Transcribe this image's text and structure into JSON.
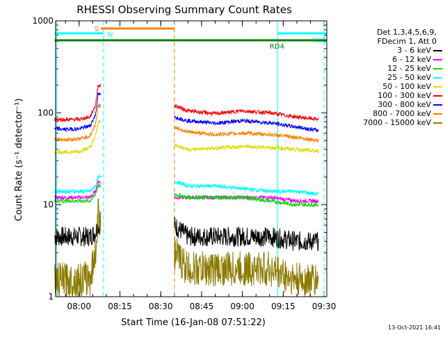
{
  "chart_data": {
    "type": "line",
    "title": "RHESSI Observing Summary Count Rates",
    "xlabel": "Start Time (16-Jan-08 07:51:22)",
    "ylabel": "Count Rate (s⁻¹ detector⁻¹)",
    "x_scale": "time",
    "y_scale": "log",
    "xlim": [
      "07:51:22",
      "09:31:00"
    ],
    "ylim": [
      1,
      1000
    ],
    "x_ticks": [
      "08:00",
      "08:15",
      "08:30",
      "08:45",
      "09:00",
      "09:15",
      "09:30"
    ],
    "y_ticks": [
      "1",
      "10",
      "100",
      "1000"
    ],
    "data_gap": [
      "08:08",
      "08:35"
    ],
    "series": [
      {
        "name": "3 - 6 keV",
        "color": "#000000",
        "x": [
          "07:51",
          "07:55",
          "08:00",
          "08:04",
          "08:06",
          "08:07",
          "08:35",
          "08:40",
          "08:50",
          "09:00",
          "09:10",
          "09:20",
          "09:28"
        ],
        "values": [
          4.5,
          4.5,
          4.5,
          4.5,
          5,
          6,
          6,
          4.5,
          4.5,
          4.5,
          4.5,
          4,
          4
        ]
      },
      {
        "name": "6 - 12 keV",
        "color": "#ff00ff",
        "x": [
          "07:51",
          "07:55",
          "08:00",
          "08:04",
          "08:06",
          "08:07",
          "08:35",
          "08:40",
          "08:50",
          "09:00",
          "09:10",
          "09:20",
          "09:28"
        ],
        "values": [
          12,
          12,
          12,
          12,
          14,
          18,
          12,
          12,
          12,
          12,
          12,
          11,
          11
        ]
      },
      {
        "name": "12 - 25 keV",
        "color": "#00dd00",
        "x": [
          "07:51",
          "07:55",
          "08:00",
          "08:04",
          "08:06",
          "08:07",
          "08:35",
          "08:40",
          "08:50",
          "09:00",
          "09:10",
          "09:20",
          "09:28"
        ],
        "values": [
          11,
          11,
          11,
          11,
          13,
          16,
          13,
          12,
          12,
          12,
          11,
          10,
          10
        ]
      },
      {
        "name": "25 - 50 keV",
        "color": "#00ffff",
        "x": [
          "07:51",
          "07:55",
          "08:00",
          "08:04",
          "08:06",
          "08:07",
          "08:35",
          "08:40",
          "08:50",
          "09:00",
          "09:10",
          "09:20",
          "09:28"
        ],
        "values": [
          14,
          14,
          14,
          14,
          16,
          20,
          18,
          16,
          16,
          15,
          14,
          14,
          13
        ]
      },
      {
        "name": "50 - 100 keV",
        "color": "#dddd00",
        "x": [
          "07:51",
          "07:55",
          "08:00",
          "08:04",
          "08:06",
          "08:07",
          "08:35",
          "08:40",
          "08:50",
          "09:00",
          "09:10",
          "09:20",
          "09:28"
        ],
        "values": [
          38,
          37,
          38,
          42,
          55,
          80,
          45,
          40,
          41,
          43,
          42,
          40,
          38
        ]
      },
      {
        "name": "100 - 300 keV",
        "color": "#ff0000",
        "x": [
          "07:51",
          "07:55",
          "08:00",
          "08:04",
          "08:06",
          "08:07",
          "08:35",
          "08:40",
          "08:50",
          "09:00",
          "09:10",
          "09:20",
          "09:28"
        ],
        "values": [
          85,
          84,
          85,
          90,
          120,
          200,
          120,
          105,
          98,
          105,
          100,
          90,
          85
        ]
      },
      {
        "name": "300 - 800 keV",
        "color": "#0000ff",
        "x": [
          "07:51",
          "07:55",
          "08:00",
          "08:04",
          "08:06",
          "08:07",
          "08:35",
          "08:40",
          "08:50",
          "09:00",
          "09:10",
          "09:20",
          "09:28"
        ],
        "values": [
          67,
          66,
          67,
          72,
          95,
          160,
          90,
          82,
          77,
          82,
          78,
          70,
          64
        ]
      },
      {
        "name": "800 - 7000 keV",
        "color": "#ff8000",
        "x": [
          "07:51",
          "07:55",
          "08:00",
          "08:04",
          "08:06",
          "08:07",
          "08:35",
          "08:40",
          "08:50",
          "09:00",
          "09:10",
          "09:20",
          "09:28"
        ],
        "values": [
          52,
          51,
          52,
          56,
          75,
          120,
          70,
          62,
          58,
          60,
          58,
          54,
          50
        ]
      },
      {
        "name": "7000 - 15000 keV",
        "color": "#8b7a00",
        "x": [
          "07:51",
          "07:55",
          "08:00",
          "08:04",
          "08:06",
          "08:07",
          "08:35",
          "08:40",
          "08:50",
          "09:00",
          "09:10",
          "09:20",
          "09:28"
        ],
        "values": [
          1.5,
          1.5,
          1.5,
          1.6,
          3,
          8,
          3,
          2,
          2,
          2,
          2,
          1.5,
          1.5
        ]
      }
    ],
    "annotations": [
      {
        "label": "S",
        "color": "#ff8000",
        "start": "08:08",
        "end": "08:35"
      },
      {
        "label": "N",
        "color": "#00ffff",
        "start": "07:51",
        "end": "08:09"
      },
      {
        "label": "RD5",
        "color": "#00ffff",
        "start": "09:13",
        "end": "09:31"
      },
      {
        "label": "RD4",
        "color": "#008000",
        "start": "07:51",
        "end": "09:31"
      }
    ],
    "vertical_lines": [
      {
        "time": "08:09",
        "color": "#00ffff",
        "style": "dashed"
      },
      {
        "time": "08:35",
        "color": "#ff8000",
        "style": "dashed"
      },
      {
        "time": "09:13",
        "color": "#00ffff",
        "style": "solid"
      },
      {
        "time": "09:30",
        "color": "#00ffff",
        "style": "dashed"
      }
    ],
    "grid": false,
    "legend_position": "right"
  },
  "legend": {
    "lines": [
      "Det 1,3,4,5,6,9,",
      "FDecim 1, Att 0"
    ]
  },
  "footer": {
    "stamp": "13-Oct-2021 16:41"
  }
}
